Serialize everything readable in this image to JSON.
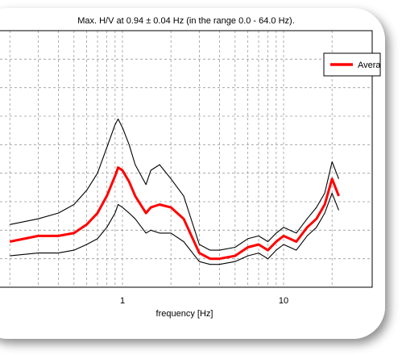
{
  "chart_data": {
    "type": "line",
    "title": "Max. H/V at 0.94 ± 0.04 Hz (in the range 0.0 - 64.0 Hz).",
    "xlabel": "frequency [Hz]",
    "ylabel": "",
    "x_scale": "log",
    "xlim": [
      0.2,
      22
    ],
    "ylim": [
      0,
      9
    ],
    "grid": true,
    "legend": {
      "position": "top-right",
      "entries": [
        "Avera"
      ]
    },
    "x_tick_labels": [
      {
        "value": 1,
        "label": "1"
      },
      {
        "value": 10,
        "label": "10"
      }
    ],
    "x": [
      0.2,
      0.3,
      0.4,
      0.5,
      0.6,
      0.7,
      0.8,
      0.9,
      0.94,
      1.0,
      1.1,
      1.2,
      1.4,
      1.5,
      1.7,
      2.0,
      2.4,
      3.0,
      3.5,
      4.0,
      5.0,
      6.0,
      7.0,
      8.0,
      9.0,
      10.0,
      12.0,
      14.0,
      16.0,
      18.0,
      20.0,
      22.0
    ],
    "series": [
      {
        "name": "Avera",
        "color": "#ff0000",
        "values": [
          1.6,
          1.8,
          1.8,
          1.9,
          2.2,
          2.6,
          3.2,
          3.9,
          4.2,
          4.1,
          3.7,
          3.2,
          2.6,
          2.8,
          2.9,
          2.8,
          2.4,
          1.2,
          1.0,
          1.0,
          1.1,
          1.4,
          1.5,
          1.3,
          1.6,
          1.8,
          1.6,
          2.1,
          2.4,
          2.9,
          3.8,
          3.2
        ]
      },
      {
        "name": "",
        "color": "#000000",
        "values": [
          2.2,
          2.4,
          2.6,
          2.9,
          3.4,
          4.0,
          4.9,
          5.7,
          5.9,
          5.6,
          5.0,
          4.3,
          3.6,
          4.1,
          4.3,
          3.8,
          3.2,
          1.5,
          1.3,
          1.3,
          1.4,
          1.7,
          1.8,
          1.6,
          1.9,
          2.1,
          1.9,
          2.4,
          2.8,
          3.3,
          4.4,
          3.8
        ]
      },
      {
        "name": "",
        "color": "#000000",
        "values": [
          1.1,
          1.2,
          1.2,
          1.3,
          1.5,
          1.7,
          2.1,
          2.6,
          2.9,
          2.8,
          2.6,
          2.4,
          1.9,
          2.0,
          1.9,
          1.9,
          1.6,
          0.9,
          0.8,
          0.8,
          0.9,
          1.1,
          1.2,
          1.0,
          1.3,
          1.5,
          1.3,
          1.8,
          2.1,
          2.6,
          3.3,
          2.7
        ]
      }
    ]
  }
}
